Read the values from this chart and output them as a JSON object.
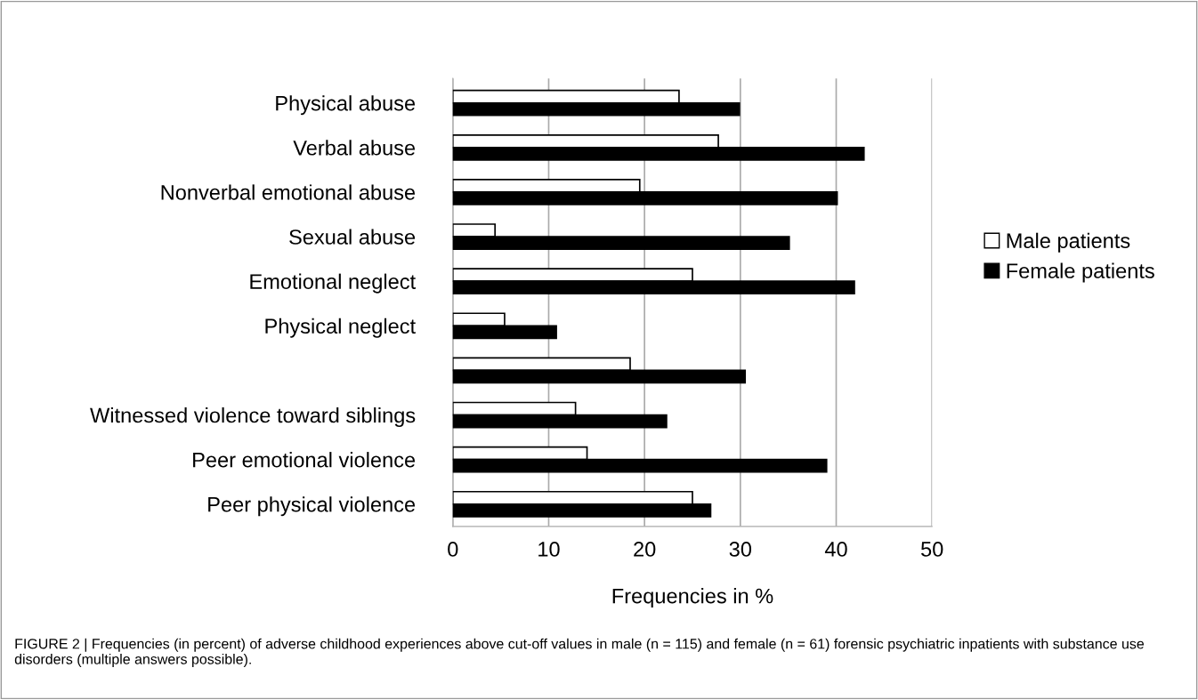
{
  "chart_data": {
    "type": "bar",
    "orientation": "horizontal",
    "categories": [
      "Physical abuse",
      "Verbal abuse",
      "Nonverbal emotional abuse",
      "Sexual abuse",
      "Emotional neglect",
      "Physical neglect",
      null,
      "Witnessed violence toward siblings",
      "Peer emotional violence",
      "Peer physical violence"
    ],
    "series": [
      {
        "name": "Male patients",
        "color": "#ffffff",
        "values": [
          23.6,
          27.7,
          19.5,
          4.4,
          25.0,
          5.4,
          18.5,
          12.8,
          14.0,
          25.0
        ]
      },
      {
        "name": "Female patients",
        "color": "#000000",
        "values": [
          29.9,
          42.9,
          40.1,
          35.1,
          41.9,
          10.8,
          30.5,
          22.3,
          39.0,
          26.9
        ]
      }
    ],
    "xlabel": "Frequencies in %",
    "xlim": [
      0,
      50
    ],
    "xticks": [
      0,
      10,
      20,
      30,
      40,
      50
    ],
    "grid": "x",
    "legend": "right",
    "annotations": [
      "FIGURE 2 | Frequencies (in percent) of adverse childhood experiences above cut-off values in male (n = 115) and female (n = 61) forensic psychiatric inpatients with substance use disorders (multiple answers possible)."
    ]
  }
}
